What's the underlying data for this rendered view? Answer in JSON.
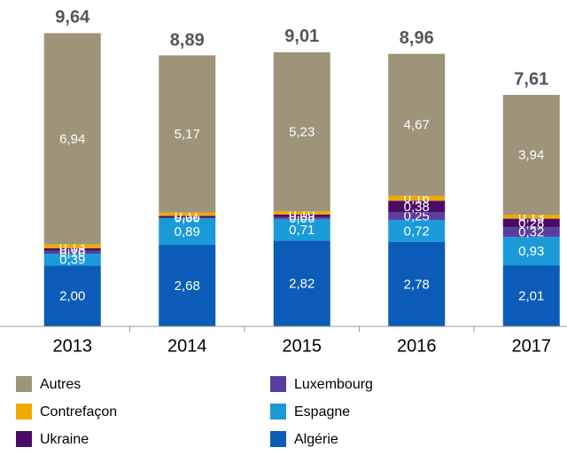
{
  "chart_data": {
    "type": "stacked-bar",
    "categories": [
      "2013",
      "2014",
      "2015",
      "2016",
      "2017"
    ],
    "ylim": [
      0,
      10
    ],
    "totals": [
      9.64,
      8.89,
      9.01,
      8.96,
      7.61
    ],
    "total_labels": [
      "9,64",
      "8,89",
      "9,01",
      "8,96",
      "7,61"
    ],
    "series": [
      {
        "name": "Algérie",
        "color": "#0a5cb8",
        "values": [
          2.0,
          2.68,
          2.82,
          2.78,
          2.01
        ],
        "value_labels": [
          "2,00",
          "2,68",
          "2,82",
          "2,78",
          "2,01"
        ]
      },
      {
        "name": "Espagne",
        "color": "#1b9ad8",
        "values": [
          0.39,
          0.89,
          0.71,
          0.72,
          0.93
        ],
        "value_labels": [
          "0,39",
          "0,89",
          "0,71",
          "0,72",
          "0,93"
        ]
      },
      {
        "name": "Luxembourg",
        "color": "#5a3e9e",
        "values": [
          0.1,
          0.0,
          0.06,
          0.25,
          0.32
        ],
        "value_labels": [
          "0,10",
          "0,00",
          "0,06",
          "0,25",
          "0,32"
        ]
      },
      {
        "name": "Ukraine",
        "color": "#4a0a68",
        "values": [
          0.08,
          0.06,
          0.09,
          0.38,
          0.28
        ],
        "value_labels": [
          "0,08",
          "0,06",
          "0,09",
          "0,38",
          "0,28"
        ]
      },
      {
        "name": "Contrefaçon",
        "color": "#f0a900",
        "values": [
          0.13,
          0.11,
          0.1,
          0.16,
          0.13
        ],
        "value_labels": [
          "0,13",
          "0,11",
          "0,10",
          "0,16",
          "0,13"
        ]
      },
      {
        "name": "Autres",
        "color": "#9d9479",
        "values": [
          6.94,
          5.17,
          5.23,
          4.67,
          3.94
        ],
        "value_labels": [
          "6,94",
          "5,17",
          "5,23",
          "4,67",
          "3,94"
        ]
      }
    ]
  }
}
